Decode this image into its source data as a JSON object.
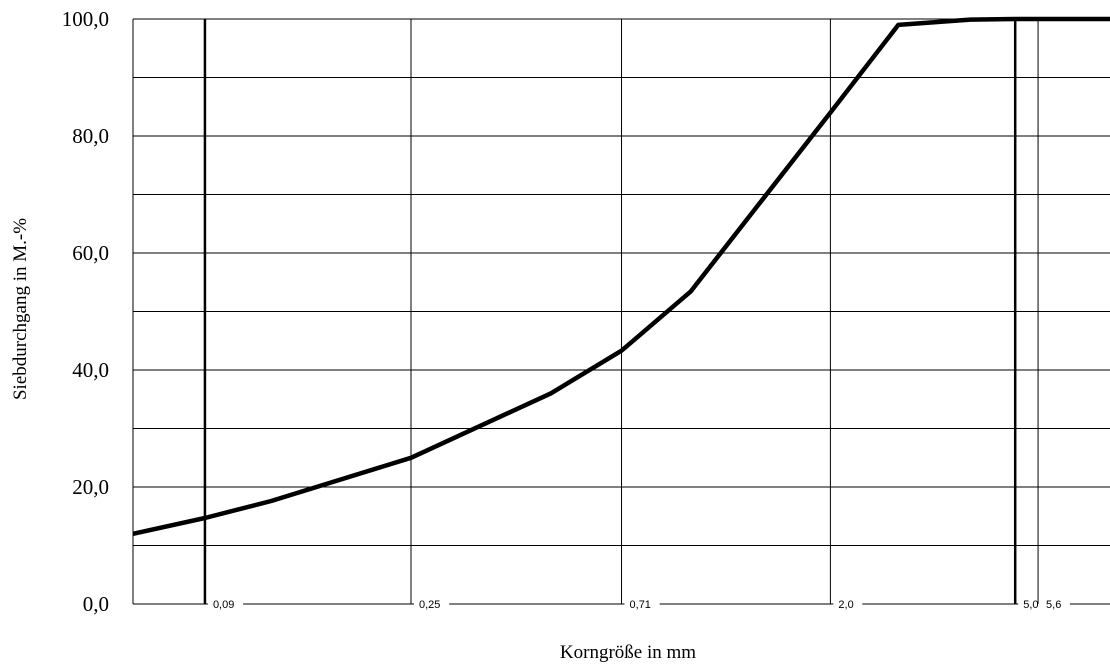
{
  "chart_data": {
    "type": "line",
    "title": "",
    "xlabel": "Korngröße in mm",
    "ylabel": "Siebdurchgang in M.-%",
    "x_scale": "log",
    "xlim": [
      0.063,
      8.0
    ],
    "ylim": [
      0,
      100
    ],
    "grid": true,
    "y_ticks": [
      {
        "value": 0,
        "label": "0,0"
      },
      {
        "value": 20,
        "label": "20,0"
      },
      {
        "value": 40,
        "label": "40,0"
      },
      {
        "value": 60,
        "label": "60,0"
      },
      {
        "value": 80,
        "label": "80,0"
      },
      {
        "value": 100,
        "label": "100,0"
      }
    ],
    "x_ticks": [
      {
        "value": 0.09,
        "label": "0,09"
      },
      {
        "value": 0.25,
        "label": "0,25"
      },
      {
        "value": 0.71,
        "label": "0,71"
      },
      {
        "value": 2.0,
        "label": "2,0"
      },
      {
        "value": 5.0,
        "label": "5,0"
      },
      {
        "value": 5.6,
        "label": "5,6"
      }
    ],
    "series": [
      {
        "x": [
          0.063,
          0.09,
          0.125,
          0.25,
          0.5,
          0.71,
          1.0,
          2.0,
          2.8,
          4.0,
          5.0,
          5.6,
          8.0
        ],
        "values": [
          12,
          14.7,
          17.6,
          25,
          36,
          43.3,
          53.4,
          84,
          99,
          99.9,
          100,
          100,
          100
        ]
      }
    ]
  }
}
